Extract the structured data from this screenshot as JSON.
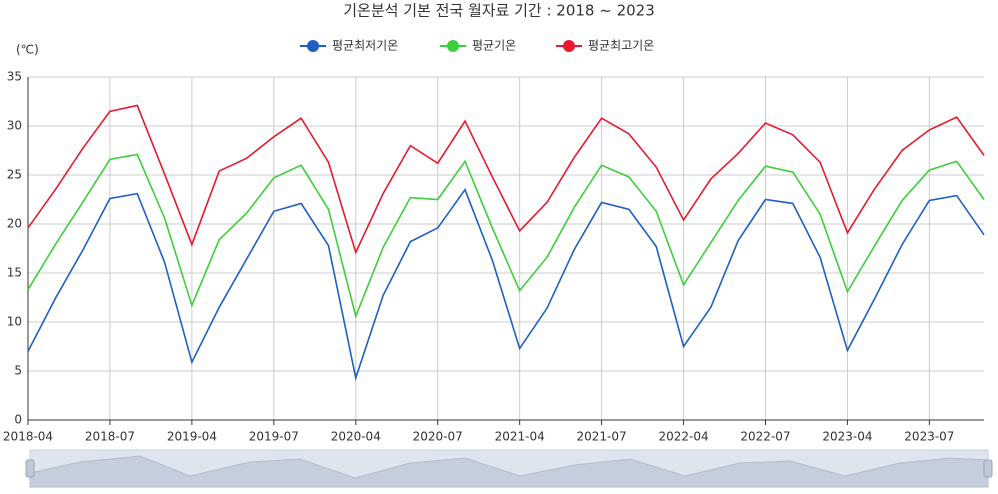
{
  "chart_data": {
    "type": "line",
    "title": "기온분석 기본 전국 월자료 기간 : 2018 ~ 2023",
    "y_label": "(℃)",
    "categories": [
      "2018-04",
      null,
      null,
      "2018-07",
      null,
      null,
      "2019-04",
      null,
      null,
      "2019-07",
      null,
      null,
      "2020-04",
      null,
      null,
      "2020-07",
      null,
      null,
      "2021-04",
      null,
      null,
      "2021-07",
      null,
      null,
      "2022-04",
      null,
      null,
      "2022-07",
      null,
      null,
      "2023-04",
      null,
      null,
      "2023-07",
      null,
      null
    ],
    "series": [
      {
        "name": "평균최저기온",
        "color": "#1f5fc4",
        "values": [
          7.0,
          12.4,
          17.3,
          22.6,
          23.1,
          16.1,
          5.9,
          11.5,
          16.4,
          21.3,
          22.1,
          17.8,
          4.3,
          12.7,
          18.2,
          19.6,
          23.5,
          16.3,
          7.3,
          11.4,
          17.4,
          22.2,
          21.5,
          17.7,
          7.5,
          11.5,
          18.3,
          22.5,
          22.1,
          16.6,
          7.1,
          12.4,
          17.9,
          22.4,
          22.9,
          18.9
        ]
      },
      {
        "name": "평균기온",
        "color": "#3ccf3c",
        "values": [
          13.3,
          17.9,
          22.2,
          26.6,
          27.1,
          20.6,
          11.7,
          18.4,
          21.1,
          24.7,
          26.0,
          21.5,
          10.6,
          17.6,
          22.7,
          22.5,
          26.4,
          19.6,
          13.2,
          16.6,
          21.7,
          26.0,
          24.8,
          21.3,
          13.8,
          18.1,
          22.4,
          25.9,
          25.3,
          21.0,
          13.1,
          17.8,
          22.4,
          25.5,
          26.4,
          22.5
        ]
      },
      {
        "name": "평균최고기온",
        "color": "#e8192f",
        "values": [
          19.6,
          23.5,
          27.7,
          31.5,
          32.1,
          25.1,
          17.9,
          25.4,
          26.7,
          28.9,
          30.8,
          26.3,
          17.1,
          23.1,
          28.0,
          26.2,
          30.5,
          24.8,
          19.3,
          22.2,
          26.8,
          30.8,
          29.2,
          25.8,
          20.4,
          24.6,
          27.2,
          30.3,
          29.1,
          26.3,
          19.1,
          23.6,
          27.5,
          29.6,
          30.9,
          27.0
        ]
      }
    ],
    "ylim": [
      0,
      35
    ],
    "yticks": [
      0,
      5,
      10,
      15,
      20,
      25,
      30,
      35
    ],
    "grid": true,
    "legend": "top"
  }
}
